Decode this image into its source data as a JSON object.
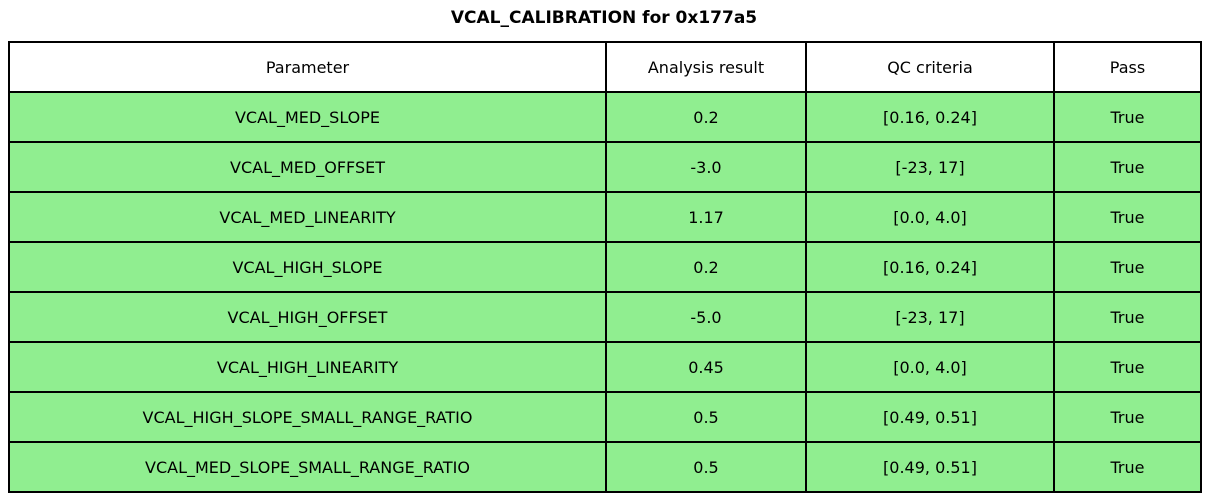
{
  "chart_data": {
    "type": "table",
    "title": "VCAL_CALIBRATION for 0x177a5",
    "columns": [
      "Parameter",
      "Analysis result",
      "QC criteria",
      "Pass"
    ],
    "rows": [
      {
        "parameter": "VCAL_MED_SLOPE",
        "analysis_result": "0.2",
        "qc_criteria": "[0.16, 0.24]",
        "pass": "True"
      },
      {
        "parameter": "VCAL_MED_OFFSET",
        "analysis_result": "-3.0",
        "qc_criteria": "[-23, 17]",
        "pass": "True"
      },
      {
        "parameter": "VCAL_MED_LINEARITY",
        "analysis_result": "1.17",
        "qc_criteria": "[0.0, 4.0]",
        "pass": "True"
      },
      {
        "parameter": "VCAL_HIGH_SLOPE",
        "analysis_result": "0.2",
        "qc_criteria": "[0.16, 0.24]",
        "pass": "True"
      },
      {
        "parameter": "VCAL_HIGH_OFFSET",
        "analysis_result": "-5.0",
        "qc_criteria": "[-23, 17]",
        "pass": "True"
      },
      {
        "parameter": "VCAL_HIGH_LINEARITY",
        "analysis_result": "0.45",
        "qc_criteria": "[0.0, 4.0]",
        "pass": "True"
      },
      {
        "parameter": "VCAL_HIGH_SLOPE_SMALL_RANGE_RATIO",
        "analysis_result": "0.5",
        "qc_criteria": "[0.49, 0.51]",
        "pass": "True"
      },
      {
        "parameter": "VCAL_MED_SLOPE_SMALL_RANGE_RATIO",
        "analysis_result": "0.5",
        "qc_criteria": "[0.49, 0.51]",
        "pass": "True"
      }
    ],
    "legend": "none",
    "grid": "table borders only"
  },
  "colors": {
    "pass_row_bg": "#90EE90",
    "header_bg": "#FFFFFF",
    "border": "#000000",
    "text": "#000000"
  }
}
